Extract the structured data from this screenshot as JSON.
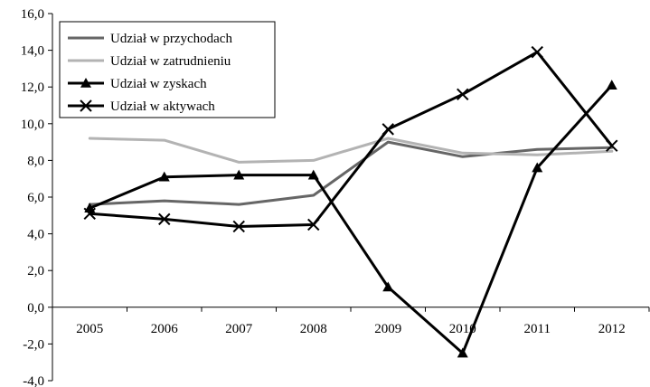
{
  "chart_data": {
    "type": "line",
    "title": "",
    "xlabel": "",
    "ylabel": "",
    "ylim": [
      -4.0,
      16.0
    ],
    "ytick_step": 2.0,
    "y_tick_labels": [
      "-4,0",
      "-2,0",
      "0,0",
      "2,0",
      "4,0",
      "6,0",
      "8,0",
      "10,0",
      "12,0",
      "14,0",
      "16,0"
    ],
    "categories": [
      "2005",
      "2006",
      "2007",
      "2008",
      "2009",
      "2010",
      "2011",
      "2012"
    ],
    "grid": false,
    "legend_position": "top-left",
    "series": [
      {
        "name": "Udział w przychodach",
        "color": "#666666",
        "marker": "none",
        "values": [
          5.6,
          5.8,
          5.6,
          6.1,
          9.0,
          8.2,
          8.6,
          8.7
        ]
      },
      {
        "name": "Udział w zatrudnieniu",
        "color": "#b3b3b3",
        "marker": "none",
        "values": [
          9.2,
          9.1,
          7.9,
          8.0,
          9.2,
          8.4,
          8.3,
          8.5
        ]
      },
      {
        "name": "Udział w zyskach",
        "color": "#000000",
        "marker": "triangle",
        "values": [
          5.4,
          7.1,
          7.2,
          7.2,
          1.1,
          -2.5,
          7.6,
          12.1
        ]
      },
      {
        "name": "Udział w aktywach",
        "color": "#000000",
        "marker": "x",
        "values": [
          5.1,
          4.8,
          4.4,
          4.5,
          9.7,
          11.6,
          13.9,
          8.8
        ]
      }
    ]
  }
}
